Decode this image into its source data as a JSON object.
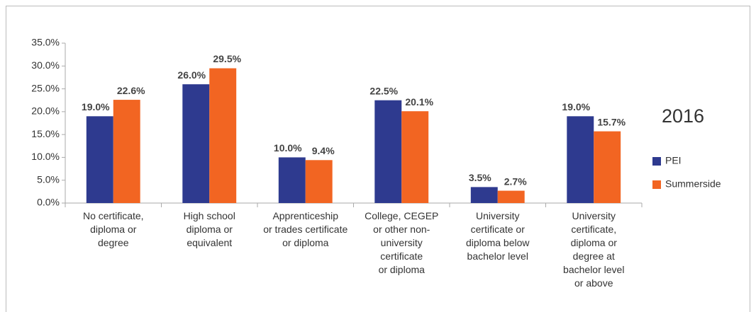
{
  "chart_data": {
    "type": "bar",
    "categories": [
      "No certificate,\ndiploma or\ndegree",
      "High school\ndiploma or\nequivalent",
      "Apprenticeship\nor trades certificate\nor diploma",
      "College, CEGEP\nor other non-\nuniversity\ncertificate\nor diploma",
      "University\ncertificate or\ndiploma below\nbachelor level",
      "University\ncertificate,\ndiploma or\ndegree at\nbachelor level\nor above"
    ],
    "series": [
      {
        "name": "PEI",
        "color": "#2e3a8f",
        "values": [
          19.0,
          26.0,
          10.0,
          22.5,
          3.5,
          19.0
        ],
        "value_labels": [
          "19.0%",
          "26.0%",
          "10.0%",
          "22.5%",
          "3.5%",
          "19.0%"
        ]
      },
      {
        "name": "Summerside",
        "color": "#f26522",
        "values": [
          22.6,
          29.5,
          9.4,
          20.1,
          2.7,
          15.7
        ],
        "value_labels": [
          "22.6%",
          "29.5%",
          "9.4%",
          "20.1%",
          "2.7%",
          "15.7%"
        ]
      }
    ],
    "legend_title": "2016",
    "ylim": [
      0,
      35
    ],
    "yticks": [
      {
        "value": 0,
        "label": "0.0%"
      },
      {
        "value": 5,
        "label": "5.0%"
      },
      {
        "value": 10,
        "label": "10.0%"
      },
      {
        "value": 15,
        "label": "15.0%"
      },
      {
        "value": 20,
        "label": "20.0%"
      },
      {
        "value": 25,
        "label": "25.0%"
      },
      {
        "value": 30,
        "label": "30.0%"
      },
      {
        "value": 35,
        "label": "35.0%"
      }
    ],
    "grid": false,
    "legend": "right"
  }
}
